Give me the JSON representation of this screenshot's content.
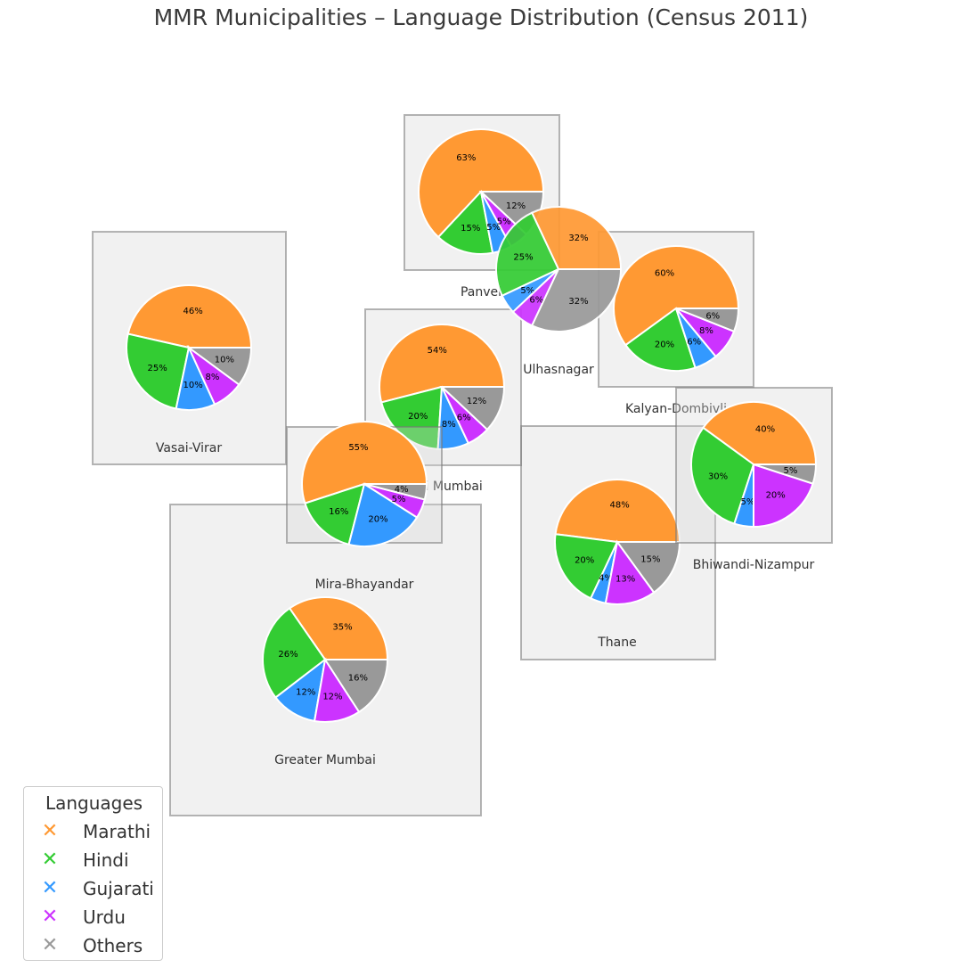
{
  "chart_data": {
    "type": "pie",
    "title": "MMR Municipalities – Language Distribution (Census 2011)",
    "categories": [
      "Marathi",
      "Hindi",
      "Gujarati",
      "Urdu",
      "Others"
    ],
    "colors": {
      "Marathi": "#FF9933",
      "Hindi": "#33CC33",
      "Gujarati": "#3399FF",
      "Urdu": "#CC33FF",
      "Others": "#999999"
    },
    "legend": {
      "title": "Languages",
      "placement": "lower-left"
    },
    "municipalities": [
      {
        "name": "Greater Mumbai",
        "values": [
          35,
          26,
          12,
          12,
          16
        ]
      },
      {
        "name": "Thane",
        "values": [
          48,
          20,
          4,
          13,
          15
        ]
      },
      {
        "name": "Navi Mumbai",
        "values": [
          54,
          20,
          8,
          6,
          12
        ]
      },
      {
        "name": "Kalyan-Dombivli",
        "values": [
          60,
          20,
          6,
          8,
          6
        ]
      },
      {
        "name": "Vasai-Virar",
        "values": [
          46,
          25,
          10,
          8,
          10
        ]
      },
      {
        "name": "Mira-Bhayandar",
        "values": [
          55,
          16,
          20,
          5,
          4
        ]
      },
      {
        "name": "Bhiwandi-Nizampur",
        "values": [
          40,
          30,
          5,
          20,
          5
        ]
      },
      {
        "name": "Panvel",
        "values": [
          63,
          15,
          5,
          5,
          12
        ]
      },
      {
        "name": "Ulhasnagar",
        "values": [
          32,
          25,
          5,
          6,
          32
        ]
      }
    ]
  }
}
